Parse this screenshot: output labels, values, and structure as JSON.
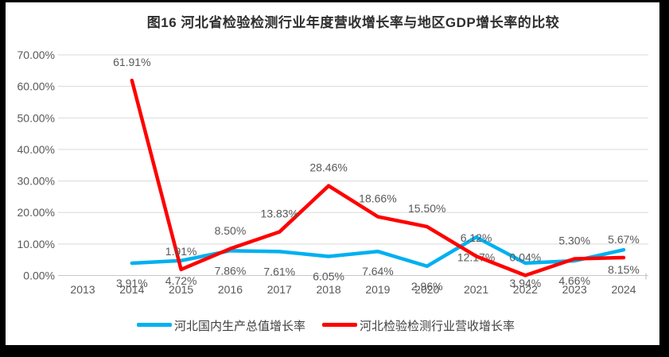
{
  "chart_data": {
    "type": "line",
    "title": "图16 河北省检验检测行业年度营收增长率与地区GDP增长率的比较",
    "categories": [
      "2013",
      "2014",
      "2015",
      "2016",
      "2017",
      "2018",
      "2019",
      "2020",
      "2021",
      "2022",
      "2023",
      "2024"
    ],
    "y_axis": {
      "min": 0,
      "max": 70,
      "ticks": [
        "0.00%",
        "10.00%",
        "20.00%",
        "30.00%",
        "40.00%",
        "50.00%",
        "60.00%",
        "70.00%"
      ],
      "grid": true
    },
    "legend_position": "bottom",
    "series": [
      {
        "name": "河北国内生产总值增长率",
        "color": "#00B0F0",
        "label_position": "below",
        "values": [
          null,
          3.91,
          4.72,
          7.86,
          7.61,
          6.05,
          7.64,
          2.96,
          12.17,
          3.94,
          4.66,
          8.15
        ],
        "labels": [
          null,
          "3.91%",
          "4.72%",
          "7.86%",
          "7.61%",
          "6.05%",
          "7.64%",
          "2.96%",
          "12.17%",
          "3.94%",
          "4.66%",
          "8.15%"
        ]
      },
      {
        "name": "河北检验检测行业营收增长率",
        "color": "#FF0000",
        "label_position": "above",
        "values": [
          null,
          61.91,
          1.91,
          8.5,
          13.83,
          28.46,
          18.66,
          15.5,
          6.12,
          0.04,
          5.3,
          5.67
        ],
        "labels": [
          null,
          "61.91%",
          "1.91%",
          "8.50%",
          "13.83%",
          "28.46%",
          "18.66%",
          "15.50%",
          "6.12%",
          "0.04%",
          "5.30%",
          "5.67%"
        ]
      }
    ],
    "colors": {
      "gridline": "#D9D9D9",
      "axis_line": "#C8C8C8",
      "tick_text": "#595959",
      "data_label_text": "#595959"
    }
  }
}
